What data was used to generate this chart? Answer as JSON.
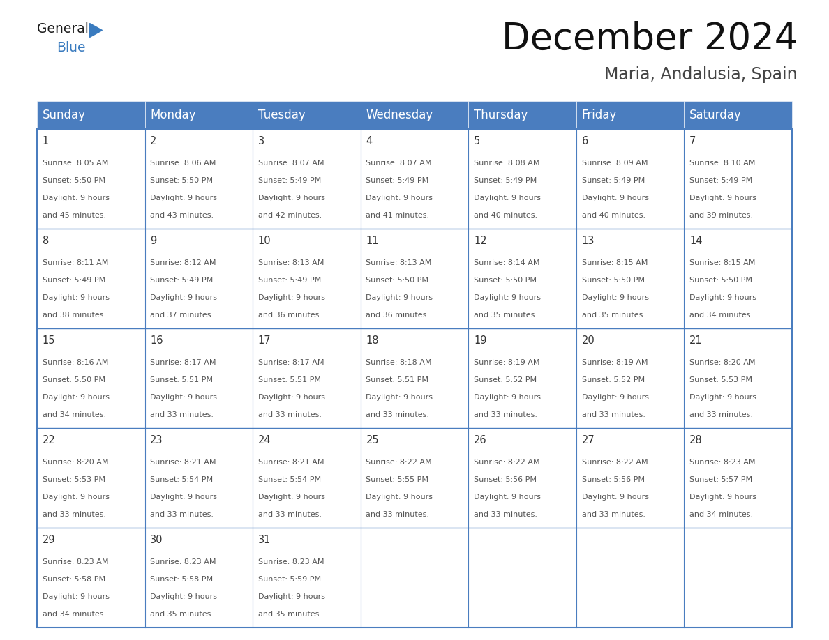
{
  "title": "December 2024",
  "subtitle": "Maria, Andalusia, Spain",
  "header_color": "#4a7dbf",
  "header_text_color": "#FFFFFF",
  "day_names": [
    "Sunday",
    "Monday",
    "Tuesday",
    "Wednesday",
    "Thursday",
    "Friday",
    "Saturday"
  ],
  "bg_color": "#FFFFFF",
  "border_color": "#4a7dbf",
  "days": [
    {
      "day": 1,
      "col": 0,
      "row": 0,
      "sunrise": "8:05 AM",
      "sunset": "5:50 PM",
      "daylight": "9 hours and 45 minutes"
    },
    {
      "day": 2,
      "col": 1,
      "row": 0,
      "sunrise": "8:06 AM",
      "sunset": "5:50 PM",
      "daylight": "9 hours and 43 minutes"
    },
    {
      "day": 3,
      "col": 2,
      "row": 0,
      "sunrise": "8:07 AM",
      "sunset": "5:49 PM",
      "daylight": "9 hours and 42 minutes"
    },
    {
      "day": 4,
      "col": 3,
      "row": 0,
      "sunrise": "8:07 AM",
      "sunset": "5:49 PM",
      "daylight": "9 hours and 41 minutes"
    },
    {
      "day": 5,
      "col": 4,
      "row": 0,
      "sunrise": "8:08 AM",
      "sunset": "5:49 PM",
      "daylight": "9 hours and 40 minutes"
    },
    {
      "day": 6,
      "col": 5,
      "row": 0,
      "sunrise": "8:09 AM",
      "sunset": "5:49 PM",
      "daylight": "9 hours and 40 minutes"
    },
    {
      "day": 7,
      "col": 6,
      "row": 0,
      "sunrise": "8:10 AM",
      "sunset": "5:49 PM",
      "daylight": "9 hours and 39 minutes"
    },
    {
      "day": 8,
      "col": 0,
      "row": 1,
      "sunrise": "8:11 AM",
      "sunset": "5:49 PM",
      "daylight": "9 hours and 38 minutes"
    },
    {
      "day": 9,
      "col": 1,
      "row": 1,
      "sunrise": "8:12 AM",
      "sunset": "5:49 PM",
      "daylight": "9 hours and 37 minutes"
    },
    {
      "day": 10,
      "col": 2,
      "row": 1,
      "sunrise": "8:13 AM",
      "sunset": "5:49 PM",
      "daylight": "9 hours and 36 minutes"
    },
    {
      "day": 11,
      "col": 3,
      "row": 1,
      "sunrise": "8:13 AM",
      "sunset": "5:50 PM",
      "daylight": "9 hours and 36 minutes"
    },
    {
      "day": 12,
      "col": 4,
      "row": 1,
      "sunrise": "8:14 AM",
      "sunset": "5:50 PM",
      "daylight": "9 hours and 35 minutes"
    },
    {
      "day": 13,
      "col": 5,
      "row": 1,
      "sunrise": "8:15 AM",
      "sunset": "5:50 PM",
      "daylight": "9 hours and 35 minutes"
    },
    {
      "day": 14,
      "col": 6,
      "row": 1,
      "sunrise": "8:15 AM",
      "sunset": "5:50 PM",
      "daylight": "9 hours and 34 minutes"
    },
    {
      "day": 15,
      "col": 0,
      "row": 2,
      "sunrise": "8:16 AM",
      "sunset": "5:50 PM",
      "daylight": "9 hours and 34 minutes"
    },
    {
      "day": 16,
      "col": 1,
      "row": 2,
      "sunrise": "8:17 AM",
      "sunset": "5:51 PM",
      "daylight": "9 hours and 33 minutes"
    },
    {
      "day": 17,
      "col": 2,
      "row": 2,
      "sunrise": "8:17 AM",
      "sunset": "5:51 PM",
      "daylight": "9 hours and 33 minutes"
    },
    {
      "day": 18,
      "col": 3,
      "row": 2,
      "sunrise": "8:18 AM",
      "sunset": "5:51 PM",
      "daylight": "9 hours and 33 minutes"
    },
    {
      "day": 19,
      "col": 4,
      "row": 2,
      "sunrise": "8:19 AM",
      "sunset": "5:52 PM",
      "daylight": "9 hours and 33 minutes"
    },
    {
      "day": 20,
      "col": 5,
      "row": 2,
      "sunrise": "8:19 AM",
      "sunset": "5:52 PM",
      "daylight": "9 hours and 33 minutes"
    },
    {
      "day": 21,
      "col": 6,
      "row": 2,
      "sunrise": "8:20 AM",
      "sunset": "5:53 PM",
      "daylight": "9 hours and 33 minutes"
    },
    {
      "day": 22,
      "col": 0,
      "row": 3,
      "sunrise": "8:20 AM",
      "sunset": "5:53 PM",
      "daylight": "9 hours and 33 minutes"
    },
    {
      "day": 23,
      "col": 1,
      "row": 3,
      "sunrise": "8:21 AM",
      "sunset": "5:54 PM",
      "daylight": "9 hours and 33 minutes"
    },
    {
      "day": 24,
      "col": 2,
      "row": 3,
      "sunrise": "8:21 AM",
      "sunset": "5:54 PM",
      "daylight": "9 hours and 33 minutes"
    },
    {
      "day": 25,
      "col": 3,
      "row": 3,
      "sunrise": "8:22 AM",
      "sunset": "5:55 PM",
      "daylight": "9 hours and 33 minutes"
    },
    {
      "day": 26,
      "col": 4,
      "row": 3,
      "sunrise": "8:22 AM",
      "sunset": "5:56 PM",
      "daylight": "9 hours and 33 minutes"
    },
    {
      "day": 27,
      "col": 5,
      "row": 3,
      "sunrise": "8:22 AM",
      "sunset": "5:56 PM",
      "daylight": "9 hours and 33 minutes"
    },
    {
      "day": 28,
      "col": 6,
      "row": 3,
      "sunrise": "8:23 AM",
      "sunset": "5:57 PM",
      "daylight": "9 hours and 34 minutes"
    },
    {
      "day": 29,
      "col": 0,
      "row": 4,
      "sunrise": "8:23 AM",
      "sunset": "5:58 PM",
      "daylight": "9 hours and 34 minutes"
    },
    {
      "day": 30,
      "col": 1,
      "row": 4,
      "sunrise": "8:23 AM",
      "sunset": "5:58 PM",
      "daylight": "9 hours and 35 minutes"
    },
    {
      "day": 31,
      "col": 2,
      "row": 4,
      "sunrise": "8:23 AM",
      "sunset": "5:59 PM",
      "daylight": "9 hours and 35 minutes"
    }
  ],
  "num_rows": 5,
  "logo_general_color": "#1a1a1a",
  "logo_blue_color": "#3a7bbf",
  "title_fontsize": 38,
  "subtitle_fontsize": 17,
  "header_fontsize": 12,
  "day_num_fontsize": 10.5,
  "cell_fontsize": 8.0
}
